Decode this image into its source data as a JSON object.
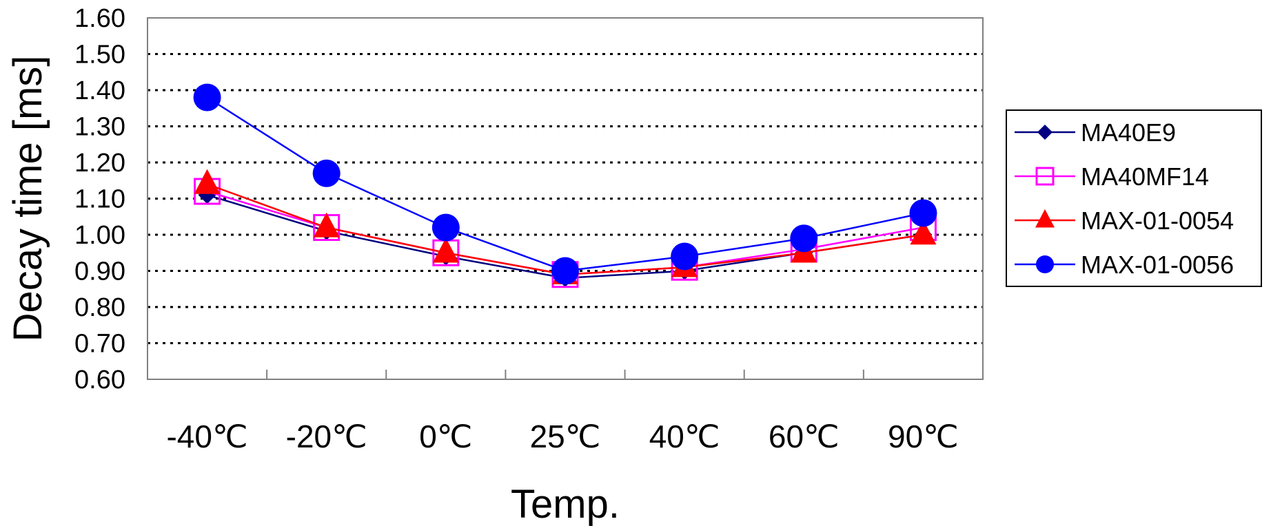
{
  "chart_data": {
    "type": "line",
    "title": "",
    "xlabel": "Temp.",
    "ylabel": "Decay time [ms]",
    "categories": [
      "-40℃",
      "-20℃",
      "0℃",
      "25℃",
      "40℃",
      "60℃",
      "90℃"
    ],
    "ylim": [
      0.6,
      1.6
    ],
    "yticks": [
      "0.60",
      "0.70",
      "0.80",
      "0.90",
      "1.00",
      "1.10",
      "1.20",
      "1.30",
      "1.40",
      "1.50",
      "1.60"
    ],
    "grid": "dotted horizontal",
    "legend_position": "right",
    "series": [
      {
        "name": "MA40E9",
        "marker": "diamond",
        "color": "#000080",
        "values": [
          1.11,
          1.01,
          0.94,
          0.88,
          0.9,
          0.95,
          1.0
        ]
      },
      {
        "name": "MA40MF14",
        "marker": "square-open",
        "color": "#ff00ff",
        "values": [
          1.12,
          1.02,
          0.95,
          0.89,
          0.91,
          0.96,
          1.02
        ]
      },
      {
        "name": "MAX-01-0054",
        "marker": "triangle",
        "color": "#ff0000",
        "values": [
          1.14,
          1.02,
          0.95,
          0.89,
          0.91,
          0.95,
          1.0
        ]
      },
      {
        "name": "MAX-01-0056",
        "marker": "circle",
        "color": "#0000ff",
        "values": [
          1.38,
          1.17,
          1.02,
          0.9,
          0.94,
          0.99,
          1.06
        ]
      }
    ]
  }
}
